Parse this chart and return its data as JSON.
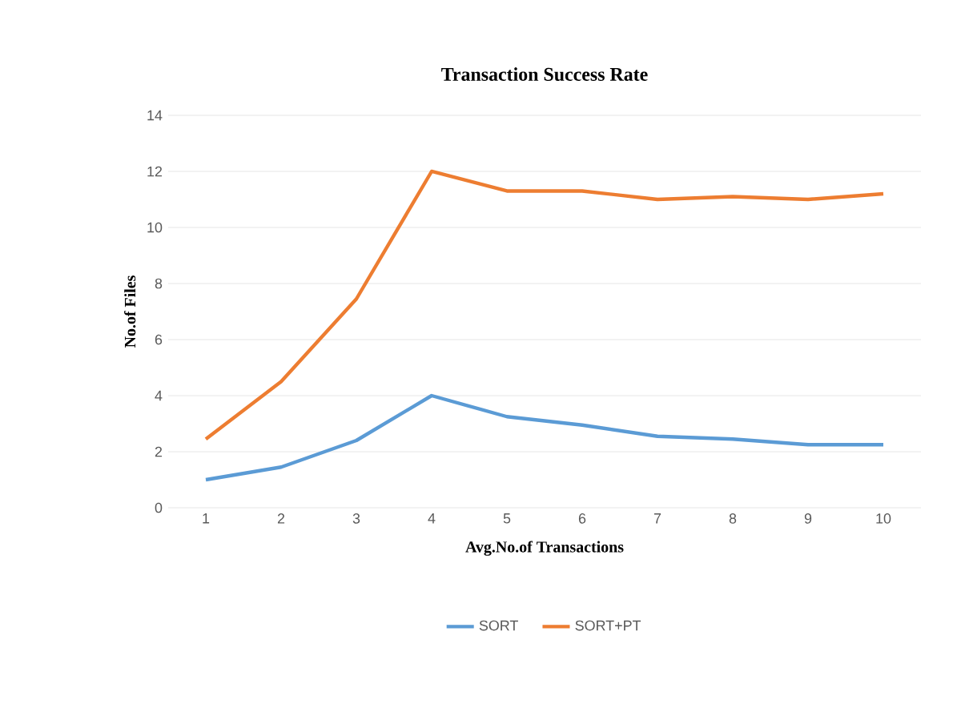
{
  "chart_data": {
    "type": "line",
    "title": "Transaction  Success Rate",
    "xlabel": "Avg.No.of  Transactions",
    "ylabel": "No.of  Files",
    "categories": [
      "1",
      "2",
      "3",
      "4",
      "5",
      "6",
      "7",
      "8",
      "9",
      "10"
    ],
    "series": [
      {
        "name": "SORT",
        "color": "#5b9bd5",
        "values": [
          1.0,
          1.45,
          2.4,
          4.0,
          3.25,
          2.95,
          2.55,
          2.45,
          2.25,
          2.25
        ]
      },
      {
        "name": "SORT+PT",
        "color": "#ed7d31",
        "values": [
          2.45,
          4.5,
          7.45,
          12.0,
          11.3,
          11.3,
          11.0,
          11.1,
          11.0,
          11.2
        ]
      }
    ],
    "ylim": [
      0,
      14
    ],
    "yticks": [
      0,
      2,
      4,
      6,
      8,
      10,
      12,
      14
    ],
    "grid": "y",
    "legend": "bottom",
    "marker": "none",
    "line_style": "solid"
  }
}
